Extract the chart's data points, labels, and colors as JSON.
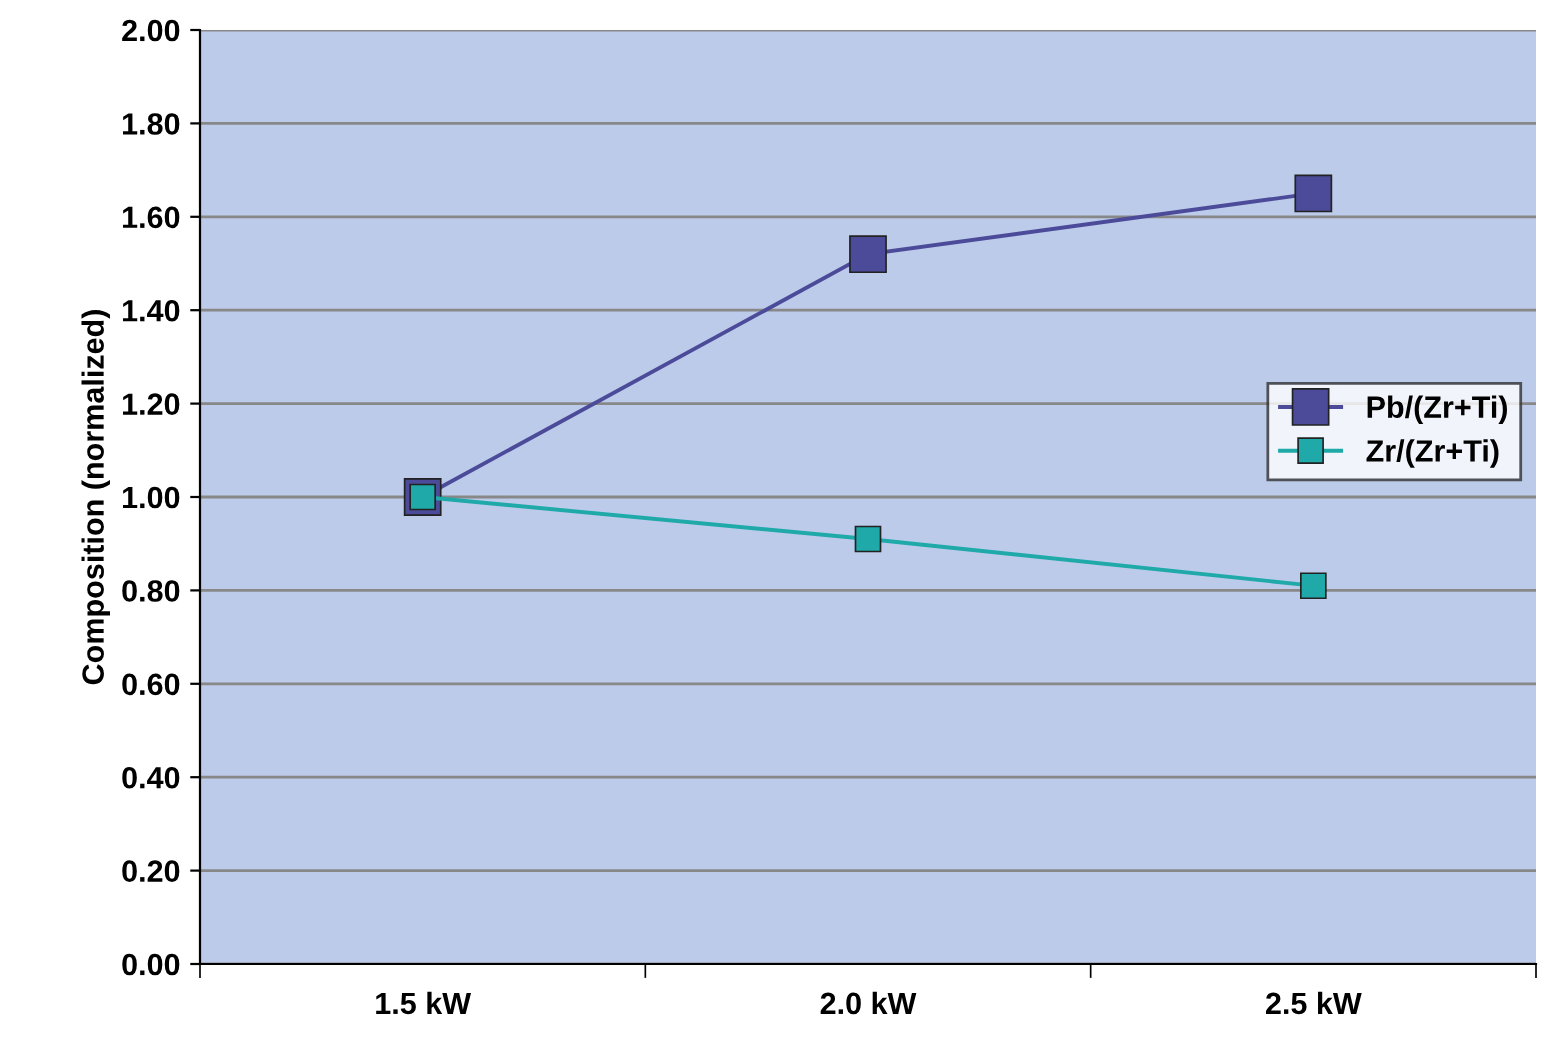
{
  "chart_data": {
    "type": "line",
    "ylabel": "Composition (normalized)",
    "categories": [
      "1.5 kW",
      "2.0 kW",
      "2.5 kW"
    ],
    "series": [
      {
        "name": "Pb/(Zr+Ti)",
        "color": "#4b4b99",
        "values": [
          1.0,
          1.52,
          1.65
        ]
      },
      {
        "name": "Zr/(Zr+Ti)",
        "color": "#1fa9a9",
        "values": [
          1.0,
          0.91,
          0.81
        ]
      }
    ],
    "ylim": [
      0,
      2
    ],
    "yticks": [
      {
        "value": 0,
        "label": "0.00"
      },
      {
        "value": 0.2,
        "label": "0.20"
      },
      {
        "value": 0.4,
        "label": "0.40"
      },
      {
        "value": 0.6,
        "label": "0.60"
      },
      {
        "value": 0.8,
        "label": "0.80"
      },
      {
        "value": 1.0,
        "label": "1.00"
      },
      {
        "value": 1.2,
        "label": "1.20"
      },
      {
        "value": 1.4,
        "label": "1.40"
      },
      {
        "value": 1.6,
        "label": "1.60"
      },
      {
        "value": 1.8,
        "label": "1.80"
      },
      {
        "value": 2.0,
        "label": "2.00"
      }
    ],
    "grid": "y",
    "legend": "right",
    "marker": "square",
    "line_style": "solid"
  }
}
